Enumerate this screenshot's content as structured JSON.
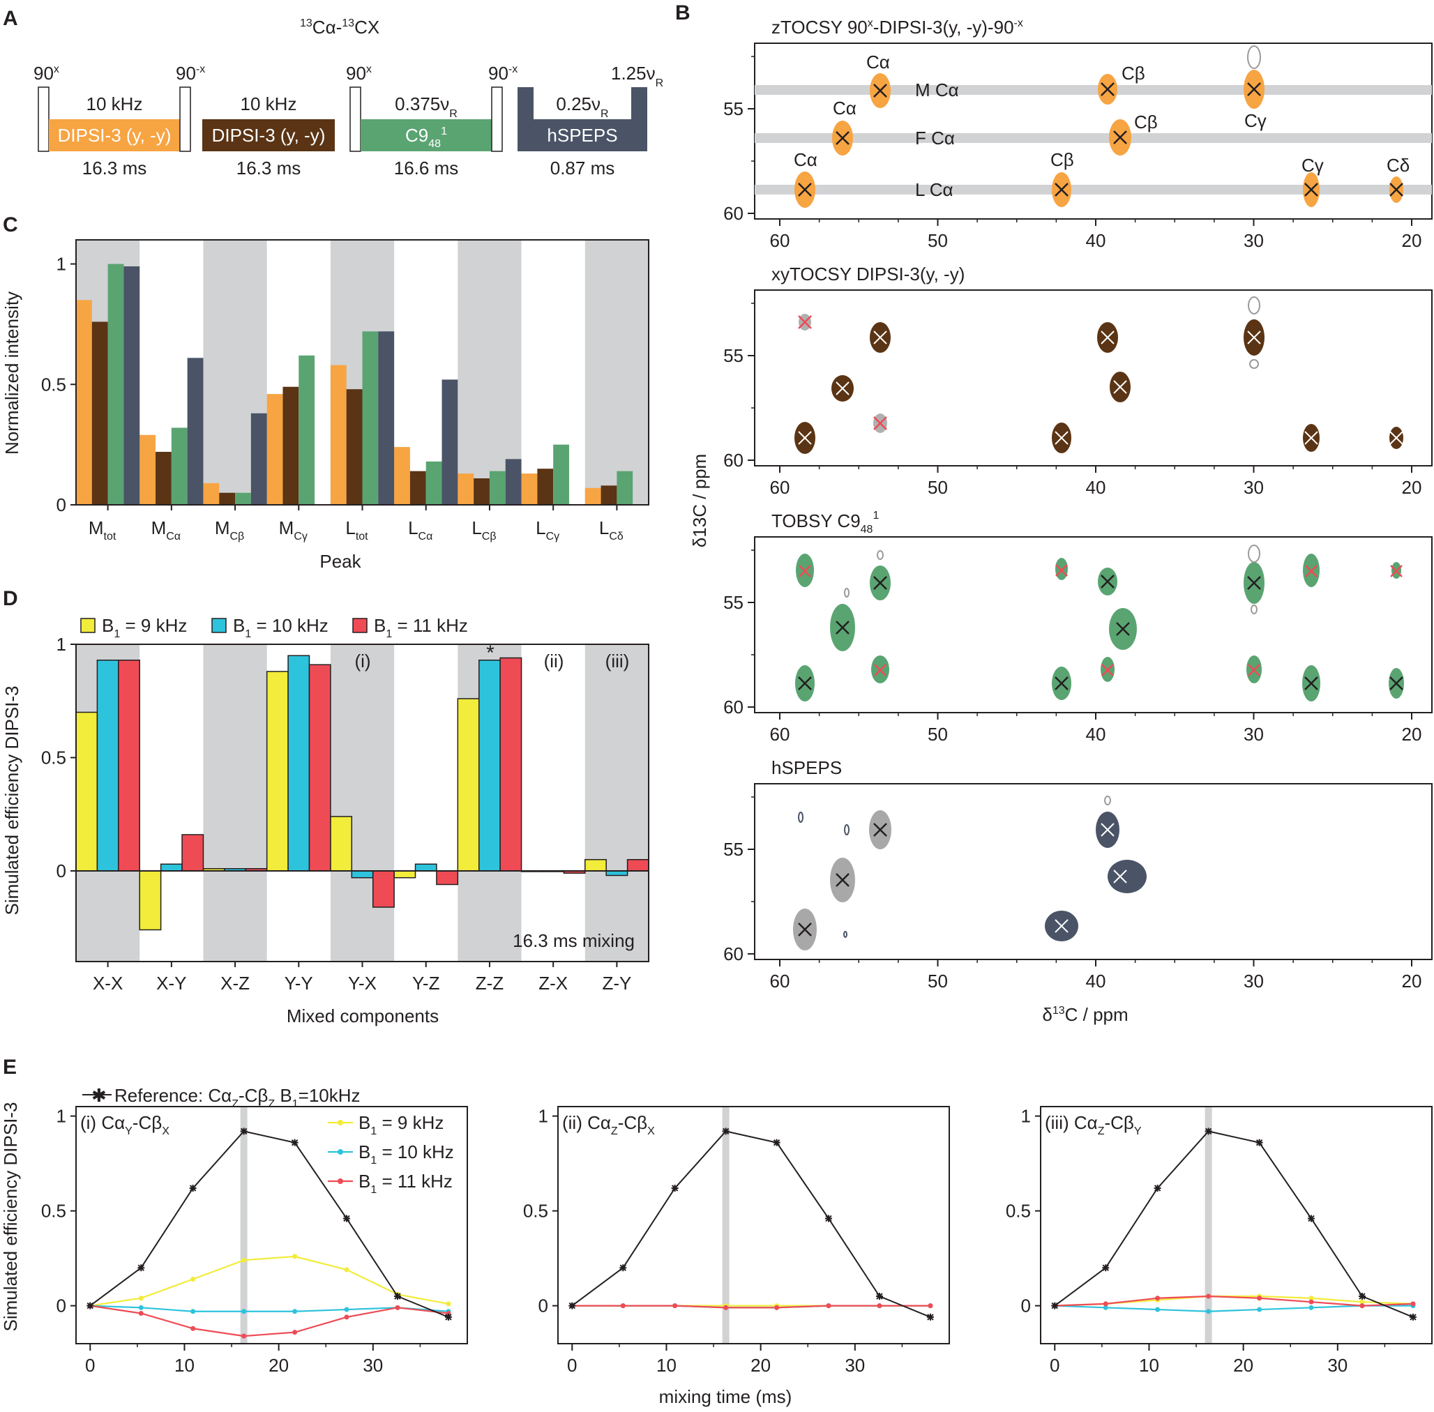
{
  "colors": {
    "orange": "#f7a443",
    "brown": "#5a3414",
    "green": "#5aa472",
    "slate": "#4a5466",
    "yellow": "#f2ec3a",
    "cyan": "#2ec3dc",
    "red": "#ef4b55",
    "band": "#d1d2d4",
    "gray": "#9a9a9a",
    "black": "#231f20"
  },
  "panel_labels": [
    "A",
    "B",
    "C",
    "D",
    "E"
  ],
  "panelA": {
    "title_13a": "13",
    "title_ca": "Cα-",
    "title_13b": "13",
    "title_cx": "CX",
    "blocks": [
      {
        "label": "DIPSI-3 (y, -y)",
        "top": "10 kHz",
        "bottom": "16.3 ms"
      },
      {
        "label": "DIPSI-3 (y, -y)",
        "top": "10 kHz",
        "bottom": "16.3 ms"
      },
      {
        "label_main": "C9",
        "label_sub": "48",
        "label_sup": "1",
        "top_main": "0.375ν",
        "top_sub": "R",
        "bottom": "16.6 ms"
      },
      {
        "label": "hSPEPS",
        "top_main": "0.25ν",
        "top_sub": "R",
        "bottom": "0.87 ms"
      }
    ],
    "pulses": {
      "p90x": "90",
      "sup_x": "x",
      "p90mx": "90",
      "sup_mx": "-x",
      "p125": "1.25ν",
      "p125_sub": "R"
    }
  },
  "panelB": {
    "spectra": [
      {
        "title": "zTOCSY 90",
        "title_sup1": "x",
        "title_mid": "-DIPSI-3(y, -y)-90",
        "title_sup2": "-x"
      },
      {
        "title": "xyTOCSY DIPSI-3(y, -y)"
      },
      {
        "title": "TOBSY C9",
        "title_sub": "48",
        "title_sup": "1"
      },
      {
        "title": "hSPEPS"
      }
    ],
    "x_ticks": [
      "60",
      "50",
      "40",
      "30",
      "20"
    ],
    "y_ticks": [
      "55",
      "60"
    ],
    "xlabel_delta": "δ",
    "xlabel_sup": "13",
    "xlabel_rest": "C / ppm",
    "ylabel": "δ13C / ppm",
    "residue_labels": [
      "M Cα",
      "F Cα",
      "L Cα"
    ],
    "peak_labels": {
      "M": [
        "Cα",
        "Cβ",
        "Cγ"
      ],
      "F": [
        "Cα",
        "Cβ"
      ],
      "L": [
        "Cα",
        "Cβ",
        "Cγ",
        "Cδ"
      ]
    }
  },
  "chart_data": [
    {
      "type": "bar",
      "panel": "C",
      "categories": [
        "M_tot",
        "M_Cα",
        "M_Cβ",
        "M_Cγ",
        "L_tot",
        "L_Cα",
        "L_Cβ",
        "L_Cγ",
        "L_Cδ"
      ],
      "category_labels": [
        {
          "main": "M",
          "sub": "tot"
        },
        {
          "main": "M",
          "sub": "Cα"
        },
        {
          "main": "M",
          "sub": "Cβ"
        },
        {
          "main": "M",
          "sub": "Cγ"
        },
        {
          "main": "L",
          "sub": "tot"
        },
        {
          "main": "L",
          "sub": "Cα"
        },
        {
          "main": "L",
          "sub": "Cβ"
        },
        {
          "main": "L",
          "sub": "Cγ"
        },
        {
          "main": "L",
          "sub": "Cδ"
        }
      ],
      "series": [
        {
          "color": "#f7a443",
          "values": [
            0.85,
            0.29,
            0.09,
            0.46,
            0.58,
            0.24,
            0.13,
            0.13,
            0.07
          ]
        },
        {
          "color": "#5a3414",
          "values": [
            0.76,
            0.22,
            0.05,
            0.49,
            0.48,
            0.14,
            0.11,
            0.15,
            0.08
          ]
        },
        {
          "color": "#5aa472",
          "values": [
            1.0,
            0.32,
            0.05,
            0.62,
            0.72,
            0.18,
            0.14,
            0.25,
            0.14
          ]
        },
        {
          "color": "#4a5466",
          "values": [
            0.99,
            0.61,
            0.38,
            0.0,
            0.72,
            0.52,
            0.19,
            0.0,
            0.0
          ]
        }
      ],
      "ylim": [
        0,
        1.1
      ],
      "yticks": [
        "0",
        "0.5",
        "1"
      ],
      "xlabel": "Peak",
      "ylabel": "Normalized intensity"
    },
    {
      "type": "bar",
      "panel": "D",
      "categories": [
        "X-X",
        "X-Y",
        "X-Z",
        "Y-Y",
        "Y-X",
        "Y-Z",
        "Z-Z",
        "Z-X",
        "Z-Y"
      ],
      "series": [
        {
          "name": "B1 = 9 kHz",
          "legend_main": "B",
          "legend_sub": "1",
          "legend_rest": " = 9 kHz",
          "color": "#f2ec3a",
          "values": [
            0.7,
            -0.26,
            0.01,
            0.88,
            0.24,
            -0.03,
            0.76,
            0.0,
            0.05
          ]
        },
        {
          "name": "B1 = 10 kHz",
          "legend_main": "B",
          "legend_sub": "1",
          "legend_rest": " = 10 kHz",
          "color": "#2ec3dc",
          "values": [
            0.93,
            0.03,
            0.01,
            0.95,
            -0.03,
            0.03,
            0.93,
            0.0,
            -0.02
          ]
        },
        {
          "name": "B1 = 11 kHz",
          "legend_main": "B",
          "legend_sub": "1",
          "legend_rest": " = 11 kHz",
          "color": "#ef4b55",
          "values": [
            0.93,
            0.16,
            0.01,
            0.91,
            -0.16,
            -0.06,
            0.94,
            -0.01,
            0.05
          ]
        }
      ],
      "ylim": [
        -0.4,
        1.0
      ],
      "yticks": [
        "0",
        "0.5",
        "1"
      ],
      "annotations": [
        "(i)",
        "(ii)",
        "(iii)",
        "*",
        "16.3 ms mixing"
      ],
      "xlabel": "Mixed components",
      "ylabel": "Simulated efficiency DIPSI-3"
    },
    {
      "type": "line",
      "panel": "E",
      "x": [
        0,
        5.4,
        10.9,
        16.3,
        21.7,
        27.2,
        32.6,
        38.0
      ],
      "xlim": [
        -1.5,
        40
      ],
      "ylim": [
        -0.2,
        1.05
      ],
      "xticks": [
        "0",
        "10",
        "20",
        "30"
      ],
      "yticks": [
        "0",
        "0.5",
        "1"
      ],
      "highlight_x": 16.3,
      "reference": {
        "label_pre": "Reference: Cα",
        "label_sub1": "Z",
        "label_mid": "-Cβ",
        "label_sub2": "Z",
        "label_post": " B",
        "label_sub3": "1",
        "label_end": "=10kHz",
        "values": [
          0,
          0.2,
          0.62,
          0.92,
          0.86,
          0.46,
          0.05,
          -0.06
        ]
      },
      "subplots": [
        {
          "label": "(i) Cα",
          "sub1": "Y",
          "mid": "-Cβ",
          "sub2": "X",
          "series": [
            {
              "name": "B1 = 9 kHz",
              "color": "#f2ec3a",
              "values": [
                0,
                0.04,
                0.14,
                0.24,
                0.26,
                0.19,
                0.06,
                0.01
              ]
            },
            {
              "name": "B1 = 10 kHz",
              "color": "#2ec3dc",
              "values": [
                0,
                -0.01,
                -0.03,
                -0.03,
                -0.03,
                -0.02,
                -0.01,
                -0.03
              ]
            },
            {
              "name": "B1 = 11 kHz",
              "color": "#ef4b55",
              "values": [
                0,
                -0.04,
                -0.12,
                -0.16,
                -0.14,
                -0.06,
                -0.01,
                -0.04
              ]
            }
          ]
        },
        {
          "label": "(ii) Cα",
          "sub1": "Z",
          "mid": "-Cβ",
          "sub2": "X",
          "series": [
            {
              "name": "B1 = 9 kHz",
              "color": "#f2ec3a",
              "values": [
                0,
                0.0,
                0.0,
                0.0,
                0.0,
                0.0,
                0.0,
                0.0
              ]
            },
            {
              "name": "B1 = 10 kHz",
              "color": "#2ec3dc",
              "values": [
                0,
                0.0,
                0.0,
                -0.01,
                -0.01,
                0.0,
                0.0,
                0.0
              ]
            },
            {
              "name": "B1 = 11 kHz",
              "color": "#ef4b55",
              "values": [
                0,
                0.0,
                0.0,
                -0.01,
                -0.01,
                0.0,
                0.0,
                0.0
              ]
            }
          ]
        },
        {
          "label": "(iii) Cα",
          "sub1": "Z",
          "mid": "-Cβ",
          "sub2": "Y",
          "series": [
            {
              "name": "B1 = 9 kHz",
              "color": "#f2ec3a",
              "values": [
                0,
                0.01,
                0.03,
                0.05,
                0.05,
                0.04,
                0.02,
                0.01
              ]
            },
            {
              "name": "B1 = 10 kHz",
              "color": "#2ec3dc",
              "values": [
                0,
                -0.01,
                -0.02,
                -0.03,
                -0.02,
                -0.01,
                0.0,
                0.0
              ]
            },
            {
              "name": "B1 = 11 kHz",
              "color": "#ef4b55",
              "values": [
                0,
                0.01,
                0.04,
                0.05,
                0.04,
                0.02,
                0.0,
                0.01
              ]
            }
          ]
        }
      ],
      "legend": [
        {
          "main": "B",
          "sub": "1",
          "rest": " = 9 kHz",
          "color": "#f2ec3a"
        },
        {
          "main": "B",
          "sub": "1",
          "rest": " = 10 kHz",
          "color": "#2ec3dc"
        },
        {
          "main": "B",
          "sub": "1",
          "rest": " = 11 kHz",
          "color": "#ef4b55"
        }
      ],
      "xlabel": "mixing time (ms)",
      "ylabel": "Simulated efficiency DIPSI-3"
    }
  ]
}
